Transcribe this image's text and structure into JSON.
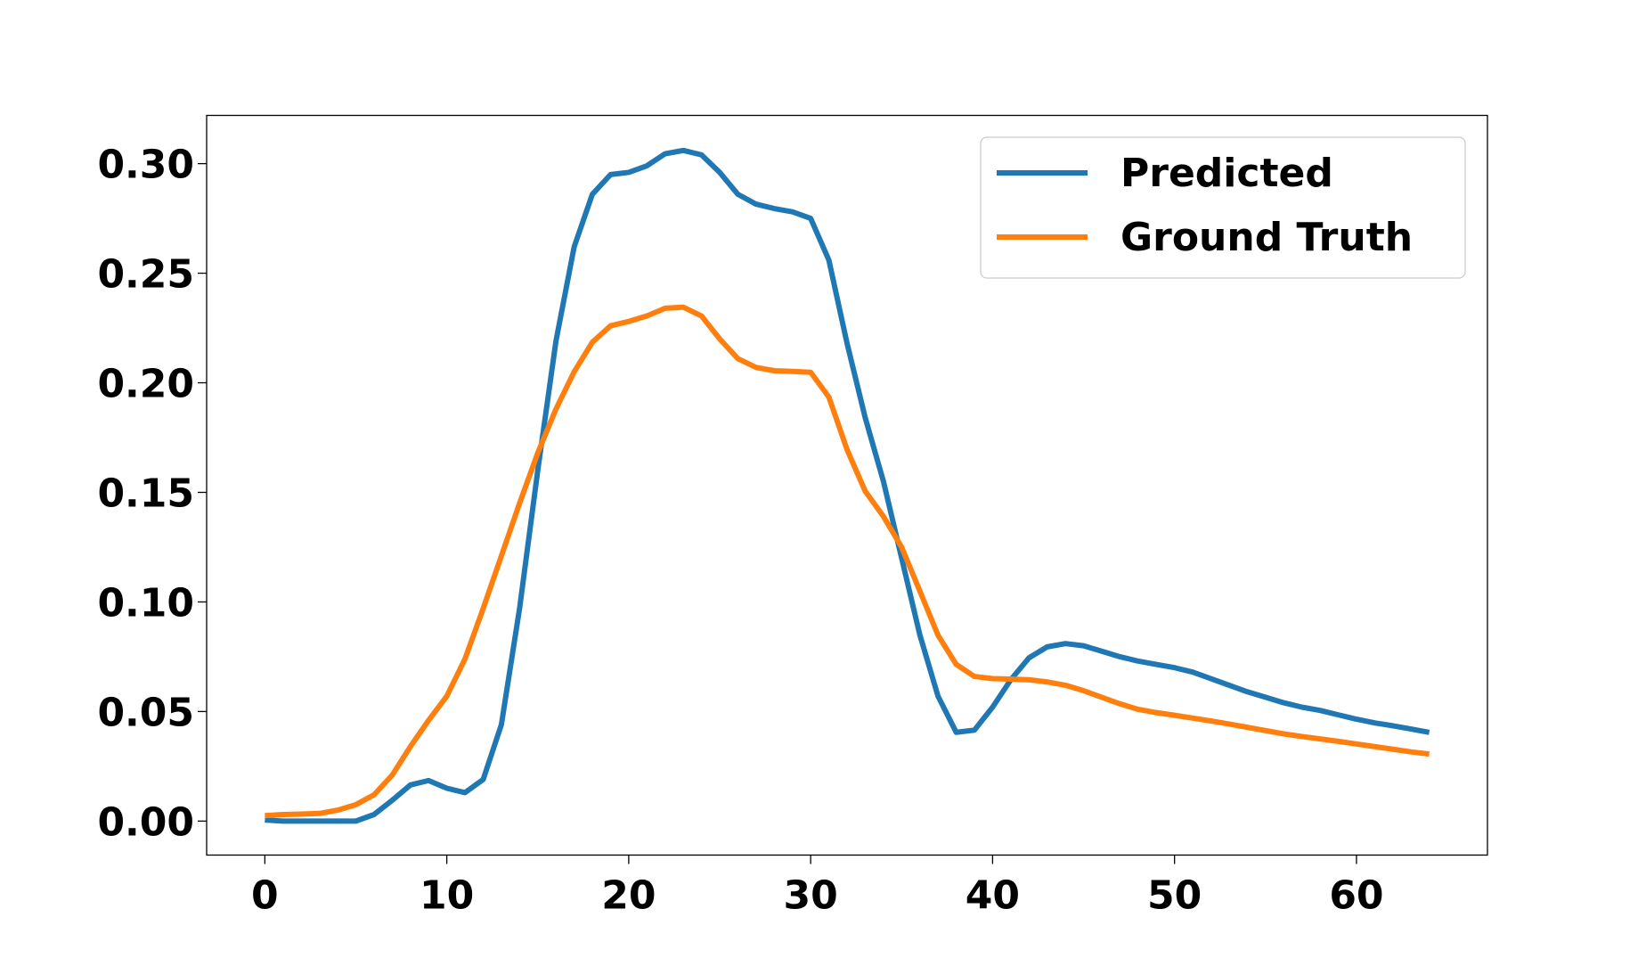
{
  "chart_data": {
    "type": "line",
    "title": "",
    "xlabel": "",
    "ylabel": "",
    "xlim": [
      -3.2,
      67.2
    ],
    "ylim": [
      -0.0155,
      0.322
    ],
    "xticks": [
      0,
      10,
      20,
      30,
      40,
      50,
      60
    ],
    "xtick_labels": [
      "0",
      "10",
      "20",
      "30",
      "40",
      "50",
      "60"
    ],
    "yticks": [
      0.0,
      0.05,
      0.1,
      0.15,
      0.2,
      0.25,
      0.3
    ],
    "ytick_labels": [
      "0.00",
      "0.05",
      "0.10",
      "0.15",
      "0.20",
      "0.25",
      "0.30"
    ],
    "grid": false,
    "legend": "upper-right",
    "x": [
      0,
      1,
      2,
      3,
      4,
      5,
      6,
      7,
      8,
      9,
      10,
      11,
      12,
      13,
      14,
      15,
      16,
      17,
      18,
      19,
      20,
      21,
      22,
      23,
      24,
      25,
      26,
      27,
      28,
      29,
      30,
      31,
      32,
      33,
      34,
      35,
      36,
      37,
      38,
      39,
      40,
      41,
      42,
      43,
      44,
      45,
      46,
      47,
      48,
      49,
      50,
      51,
      52,
      53,
      54,
      55,
      56,
      57,
      58,
      59,
      60,
      61,
      62,
      63,
      64
    ],
    "series": [
      {
        "name": "Predicted",
        "color": "#1f77b4",
        "values": [
          0.0005,
          0.0,
          0.0,
          0.0,
          0.0,
          0.0,
          0.003,
          0.0095,
          0.0165,
          0.0185,
          0.015,
          0.013,
          0.019,
          0.044,
          0.097,
          0.16,
          0.219,
          0.262,
          0.286,
          0.295,
          0.296,
          0.299,
          0.3045,
          0.306,
          0.304,
          0.296,
          0.286,
          0.2815,
          0.2795,
          0.278,
          0.275,
          0.256,
          0.218,
          0.184,
          0.155,
          0.12,
          0.085,
          0.057,
          0.0405,
          0.0415,
          0.052,
          0.0645,
          0.0745,
          0.0795,
          0.081,
          0.08,
          0.0775,
          0.075,
          0.073,
          0.0715,
          0.07,
          0.068,
          0.065,
          0.062,
          0.059,
          0.0565,
          0.054,
          0.052,
          0.0505,
          0.0485,
          0.0465,
          0.0448,
          0.0435,
          0.042,
          0.0405
        ]
      },
      {
        "name": "Ground Truth",
        "color": "#ff7f0e",
        "values": [
          0.0025,
          0.003,
          0.0032,
          0.0035,
          0.005,
          0.0075,
          0.012,
          0.021,
          0.034,
          0.046,
          0.057,
          0.074,
          0.097,
          0.121,
          0.145,
          0.168,
          0.188,
          0.205,
          0.2185,
          0.226,
          0.228,
          0.2305,
          0.234,
          0.2345,
          0.2305,
          0.22,
          0.211,
          0.207,
          0.2055,
          0.2052,
          0.2048,
          0.1935,
          0.1695,
          0.1505,
          0.139,
          0.125,
          0.105,
          0.0848,
          0.0715,
          0.066,
          0.065,
          0.0648,
          0.0645,
          0.0635,
          0.062,
          0.0595,
          0.0565,
          0.0535,
          0.051,
          0.0495,
          0.0483,
          0.047,
          0.0457,
          0.0443,
          0.0428,
          0.0413,
          0.0398,
          0.0386,
          0.0375,
          0.0364,
          0.0352,
          0.034,
          0.0328,
          0.0316,
          0.0306
        ]
      }
    ]
  }
}
